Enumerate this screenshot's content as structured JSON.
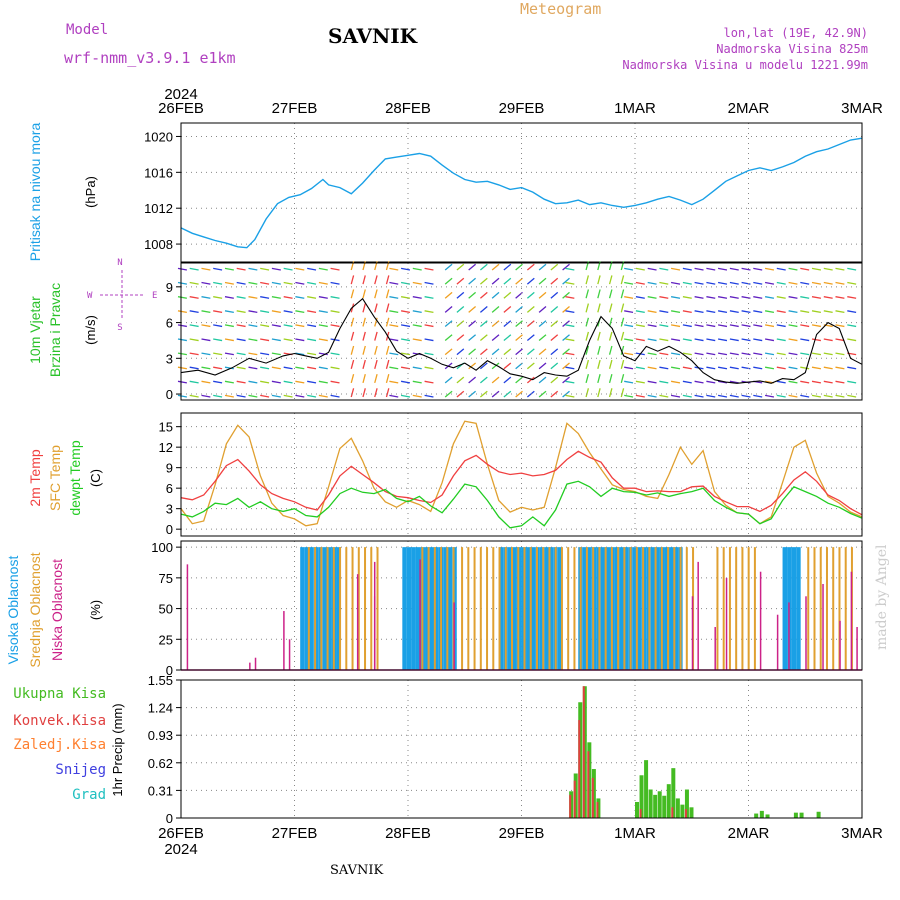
{
  "header": {
    "model_label": "Model",
    "model_name": "wrf-nmm_v3.9.1 e1km",
    "station": "SAVNIK",
    "product": "Meteogram",
    "lonlat": "lon,lat (19E, 42.9N)",
    "elevation": "Nadmorska Visina 825m",
    "model_elevation": "Nadmorska Visina u modelu 1221.99m",
    "footer_station": "SAVNIK",
    "watermark": "made by Angel",
    "year": "2024"
  },
  "colors": {
    "pressure": "#1aa0e6",
    "wind_label": "#2ac22a",
    "temp2m": "#f04040",
    "sfc_temp": "#e0a030",
    "dewpt": "#22cc22",
    "high_cloud": "#1aa0e6",
    "mid_cloud": "#e0a030",
    "low_cloud": "#cc2288",
    "total_precip": "#44bb22",
    "conv_precip": "#e04040",
    "frozen_precip": "#ff8030",
    "snow": "#4040e0",
    "graupel": "#20c0c0",
    "header_purple": "#b040c0",
    "product_orange": "#e0a860"
  },
  "chart_data": [
    {
      "type": "line",
      "panel": "pressure",
      "ylabels": [
        "Pritisak na nivou mora",
        "(hPa)"
      ],
      "yticks": [
        "1008",
        "1012",
        "1016",
        "1020"
      ],
      "ylim": [
        1006,
        1021.5
      ],
      "x_days": [
        "26FEB",
        "27FEB",
        "28FEB",
        "29FEB",
        "1MAR",
        "2MAR",
        "3MAR"
      ],
      "x_top_year": "2024",
      "series": [
        {
          "x": [
            0,
            0.1,
            0.2,
            0.3,
            0.4,
            0.5,
            0.58,
            0.65,
            0.75,
            0.85,
            0.95,
            1.05,
            1.15,
            1.25,
            1.3,
            1.4,
            1.5,
            1.6,
            1.7,
            1.8,
            1.9,
            2.0,
            2.1,
            2.2,
            2.3,
            2.4,
            2.5,
            2.6,
            2.7,
            2.8,
            2.9,
            3.0,
            3.1,
            3.2,
            3.3,
            3.4,
            3.5,
            3.6,
            3.7,
            3.8,
            3.9,
            4.0,
            4.1,
            4.2,
            4.3,
            4.4,
            4.5,
            4.6,
            4.7,
            4.8,
            4.9,
            5.0,
            5.1,
            5.2,
            5.3,
            5.4,
            5.5,
            5.6,
            5.7,
            5.8,
            5.9,
            6.0
          ],
          "values": [
            1009.8,
            1009.2,
            1008.8,
            1008.4,
            1008.1,
            1007.7,
            1007.6,
            1008.5,
            1010.8,
            1012.5,
            1013.2,
            1013.5,
            1014.2,
            1015.2,
            1014.6,
            1014.3,
            1013.6,
            1014.8,
            1016.2,
            1017.5,
            1017.7,
            1017.9,
            1018.1,
            1017.8,
            1016.8,
            1015.9,
            1015.2,
            1014.9,
            1015.0,
            1014.6,
            1014.1,
            1014.3,
            1013.8,
            1013.0,
            1012.5,
            1012.6,
            1012.9,
            1012.4,
            1012.6,
            1012.3,
            1012.1,
            1012.3,
            1012.6,
            1013.0,
            1013.3,
            1012.9,
            1012.4,
            1013.0,
            1014.0,
            1015.0,
            1015.6,
            1016.2,
            1016.5,
            1016.2,
            1016.6,
            1017.1,
            1017.8,
            1018.3,
            1018.6,
            1019.1,
            1019.6,
            1019.8
          ]
        }
      ]
    },
    {
      "type": "line",
      "panel": "wind",
      "ylabels": [
        "10m Vjetar",
        "Brzina i Pravac",
        "(m/s)"
      ],
      "yticks": [
        "0",
        "3",
        "6",
        "9"
      ],
      "ylim": [
        -0.5,
        11
      ],
      "compass": [
        "W",
        "E",
        "N",
        "S"
      ],
      "series": [
        {
          "name": "wind speed",
          "x": [
            0,
            0.15,
            0.3,
            0.45,
            0.6,
            0.75,
            0.9,
            1.0,
            1.1,
            1.2,
            1.3,
            1.4,
            1.5,
            1.6,
            1.7,
            1.8,
            1.9,
            2.0,
            2.1,
            2.2,
            2.3,
            2.4,
            2.5,
            2.6,
            2.7,
            2.8,
            2.9,
            3.0,
            3.1,
            3.2,
            3.3,
            3.4,
            3.5,
            3.6,
            3.7,
            3.8,
            3.9,
            4.0,
            4.1,
            4.2,
            4.3,
            4.4,
            4.5,
            4.6,
            4.7,
            4.8,
            4.9,
            5.0,
            5.1,
            5.2,
            5.3,
            5.4,
            5.5,
            5.6,
            5.7,
            5.8,
            5.9,
            6.0
          ],
          "values": [
            1.8,
            2.0,
            1.6,
            2.2,
            3.0,
            2.6,
            3.2,
            3.4,
            3.2,
            3.0,
            3.5,
            5.5,
            7.2,
            8.0,
            6.5,
            5.2,
            3.6,
            3.0,
            3.4,
            3.0,
            2.5,
            2.2,
            2.6,
            2.0,
            2.8,
            2.3,
            1.7,
            1.5,
            1.2,
            1.8,
            1.6,
            1.5,
            2.0,
            4.5,
            6.5,
            5.5,
            3.2,
            2.8,
            4.0,
            3.6,
            4.0,
            3.5,
            2.8,
            1.8,
            1.2,
            1.0,
            0.9,
            1.0,
            1.1,
            0.9,
            1.3,
            1.2,
            1.8,
            5.0,
            6.0,
            5.5,
            3.0,
            2.5
          ]
        }
      ]
    },
    {
      "type": "line",
      "panel": "temperature",
      "ylabels": [
        "2m Temp",
        "SFC Temp",
        "dewpt Temp",
        "(C)"
      ],
      "yticks": [
        "0",
        "3",
        "6",
        "9",
        "12",
        "15"
      ],
      "ylim": [
        -1,
        17
      ],
      "series": [
        {
          "name": "2m Temp",
          "x": [
            0,
            0.1,
            0.2,
            0.3,
            0.4,
            0.5,
            0.6,
            0.7,
            0.8,
            0.9,
            1.0,
            1.1,
            1.2,
            1.3,
            1.4,
            1.5,
            1.6,
            1.7,
            1.8,
            1.9,
            2.0,
            2.1,
            2.2,
            2.3,
            2.4,
            2.5,
            2.6,
            2.7,
            2.8,
            2.9,
            3.0,
            3.1,
            3.2,
            3.3,
            3.4,
            3.5,
            3.6,
            3.7,
            3.8,
            3.9,
            4.0,
            4.1,
            4.2,
            4.3,
            4.4,
            4.5,
            4.6,
            4.7,
            4.8,
            4.9,
            5.0,
            5.1,
            5.2,
            5.3,
            5.4,
            5.5,
            5.6,
            5.7,
            5.8,
            5.9,
            6.0
          ],
          "values": [
            4.6,
            4.3,
            5.0,
            7.0,
            9.3,
            10.2,
            8.5,
            6.5,
            5.2,
            4.5,
            4.0,
            3.2,
            2.8,
            5.0,
            7.8,
            9.2,
            8.0,
            6.8,
            5.5,
            4.8,
            4.6,
            4.2,
            3.9,
            5.0,
            7.8,
            10.0,
            10.8,
            9.5,
            8.4,
            8.0,
            8.2,
            7.8,
            8.0,
            8.6,
            10.2,
            11.4,
            10.5,
            9.8,
            7.5,
            6.0,
            6.0,
            5.5,
            5.6,
            5.5,
            5.5,
            6.2,
            6.3,
            4.8,
            4.0,
            3.3,
            3.3,
            2.6,
            3.5,
            5.2,
            7.2,
            8.4,
            7.0,
            5.0,
            4.2,
            3.0,
            2.1
          ]
        },
        {
          "name": "SFC Temp",
          "x": [
            0,
            0.1,
            0.2,
            0.3,
            0.4,
            0.5,
            0.6,
            0.7,
            0.8,
            0.9,
            1.0,
            1.1,
            1.2,
            1.3,
            1.4,
            1.5,
            1.6,
            1.7,
            1.8,
            1.9,
            2.0,
            2.1,
            2.2,
            2.3,
            2.4,
            2.5,
            2.6,
            2.7,
            2.8,
            2.9,
            3.0,
            3.1,
            3.2,
            3.3,
            3.4,
            3.5,
            3.6,
            3.7,
            3.8,
            3.9,
            4.0,
            4.1,
            4.2,
            4.3,
            4.4,
            4.5,
            4.6,
            4.7,
            4.8,
            4.9,
            5.0,
            5.1,
            5.2,
            5.3,
            5.4,
            5.5,
            5.6,
            5.7,
            5.8,
            5.9,
            6.0
          ],
          "values": [
            3.0,
            0.8,
            1.2,
            6.5,
            12.5,
            15.2,
            13.5,
            7.8,
            3.8,
            2.0,
            1.5,
            0.5,
            0.8,
            6.2,
            11.8,
            13.3,
            10.0,
            6.0,
            4.0,
            3.2,
            4.2,
            3.6,
            2.6,
            6.8,
            12.5,
            15.8,
            15.5,
            9.5,
            4.2,
            2.5,
            3.2,
            2.8,
            3.2,
            9.0,
            15.5,
            14.0,
            11.2,
            8.8,
            6.5,
            5.8,
            5.5,
            4.8,
            4.5,
            8.0,
            12.0,
            9.5,
            11.5,
            5.5,
            3.5,
            2.4,
            2.2,
            0.8,
            1.8,
            6.8,
            12.0,
            13.0,
            8.2,
            4.8,
            3.8,
            2.5,
            1.8
          ]
        },
        {
          "name": "dewpt Temp",
          "x": [
            0,
            0.1,
            0.2,
            0.3,
            0.4,
            0.5,
            0.6,
            0.7,
            0.8,
            0.9,
            1.0,
            1.1,
            1.2,
            1.3,
            1.4,
            1.5,
            1.6,
            1.7,
            1.8,
            1.9,
            2.0,
            2.1,
            2.2,
            2.3,
            2.4,
            2.5,
            2.6,
            2.7,
            2.8,
            2.9,
            3.0,
            3.1,
            3.2,
            3.3,
            3.4,
            3.5,
            3.6,
            3.7,
            3.8,
            3.9,
            4.0,
            4.1,
            4.2,
            4.3,
            4.4,
            4.5,
            4.6,
            4.7,
            4.8,
            4.9,
            5.0,
            5.1,
            5.2,
            5.3,
            5.4,
            5.5,
            5.6,
            5.7,
            5.8,
            5.9,
            6.0
          ],
          "values": [
            2.2,
            1.8,
            2.6,
            3.8,
            3.6,
            4.5,
            3.2,
            4.0,
            3.0,
            2.6,
            3.0,
            2.0,
            1.8,
            3.2,
            5.2,
            6.0,
            5.4,
            5.2,
            5.8,
            4.5,
            4.0,
            4.8,
            3.4,
            2.4,
            4.4,
            6.6,
            6.2,
            4.2,
            1.8,
            0.2,
            0.5,
            1.8,
            0.5,
            2.8,
            6.6,
            7.0,
            6.2,
            4.8,
            6.0,
            5.5,
            5.4,
            5.0,
            5.3,
            4.8,
            5.2,
            5.5,
            6.0,
            4.2,
            3.2,
            2.4,
            2.2,
            0.8,
            1.5,
            4.2,
            6.2,
            5.5,
            4.8,
            3.8,
            3.2,
            2.3,
            1.6
          ]
        }
      ]
    },
    {
      "type": "bar",
      "panel": "cloud",
      "ylabels": [
        "Visoka Oblacnost",
        "Srednja Oblacnost",
        "Niska Oblacnost",
        "(%)"
      ],
      "yticks": [
        "0",
        "25",
        "50",
        "75",
        "100"
      ],
      "ylim": [
        0,
        105
      ],
      "series": [
        {
          "name": "Visoka Oblacnost",
          "segments": [
            [
              1.05,
              1.4
            ],
            [
              1.95,
              2.4
            ],
            [
              2.8,
              3.35
            ],
            [
              3.5,
              4.4
            ],
            [
              5.3,
              5.42
            ]
          ]
        },
        {
          "name": "Srednja Oblacnost",
          "segments": [
            [
              1.1,
              1.75
            ],
            [
              2.1,
              2.4
            ],
            [
              2.45,
              4.5
            ],
            [
              4.7,
              5.05
            ],
            [
              5.5,
              5.9
            ]
          ]
        },
        {
          "name": "Niska Oblacnost",
          "spikes": [
            [
              0.05,
              86
            ],
            [
              0.6,
              6
            ],
            [
              0.65,
              10
            ],
            [
              0.9,
              48
            ],
            [
              0.95,
              25
            ],
            [
              1.55,
              78
            ],
            [
              1.7,
              60
            ],
            [
              1.7,
              88
            ],
            [
              2.1,
              90
            ],
            [
              2.4,
              55
            ],
            [
              4.5,
              60
            ],
            [
              4.55,
              88
            ],
            [
              4.7,
              35
            ],
            [
              4.8,
              75
            ],
            [
              5.1,
              80
            ],
            [
              5.25,
              45
            ],
            [
              5.35,
              55
            ],
            [
              5.5,
              60
            ],
            [
              5.65,
              70
            ],
            [
              5.8,
              40
            ],
            [
              5.9,
              80
            ],
            [
              5.95,
              35
            ]
          ]
        }
      ]
    },
    {
      "type": "bar",
      "panel": "precip",
      "ylabels": [
        "Ukupna Kisa",
        "Konvek.Kisa",
        "Zaledj.Kisa",
        "Snijeg",
        "Grad",
        "1hr Precip (mm)"
      ],
      "yticks": [
        "0",
        "0.31",
        "0.62",
        "0.93",
        "1.24",
        "1.55"
      ],
      "ylim": [
        0,
        1.55
      ],
      "series": [
        {
          "name": "Ukupna Kisa",
          "x": [
            3.42,
            3.46,
            3.5,
            3.54,
            3.58,
            3.62,
            3.66,
            4.0,
            4.04,
            4.08,
            4.12,
            4.16,
            4.2,
            4.24,
            4.28,
            4.32,
            4.36,
            4.4,
            4.44,
            4.48,
            5.05,
            5.1,
            5.15,
            5.4,
            5.45,
            5.6
          ],
          "values": [
            0.3,
            0.5,
            1.3,
            1.48,
            0.85,
            0.55,
            0.22,
            0.18,
            0.48,
            0.65,
            0.32,
            0.26,
            0.3,
            0.25,
            0.38,
            0.56,
            0.22,
            0.15,
            0.32,
            0.12,
            0.05,
            0.08,
            0.04,
            0.06,
            0.06,
            0.07
          ]
        },
        {
          "name": "Konvek.Kisa",
          "x": [
            3.42,
            3.46,
            3.5,
            3.54,
            3.58,
            3.62,
            3.66,
            4.04,
            4.32,
            4.44
          ],
          "values": [
            0.26,
            0.42,
            1.1,
            1.48,
            0.75,
            0.45,
            0.18,
            0.1,
            0.12,
            0.1
          ]
        }
      ]
    }
  ]
}
